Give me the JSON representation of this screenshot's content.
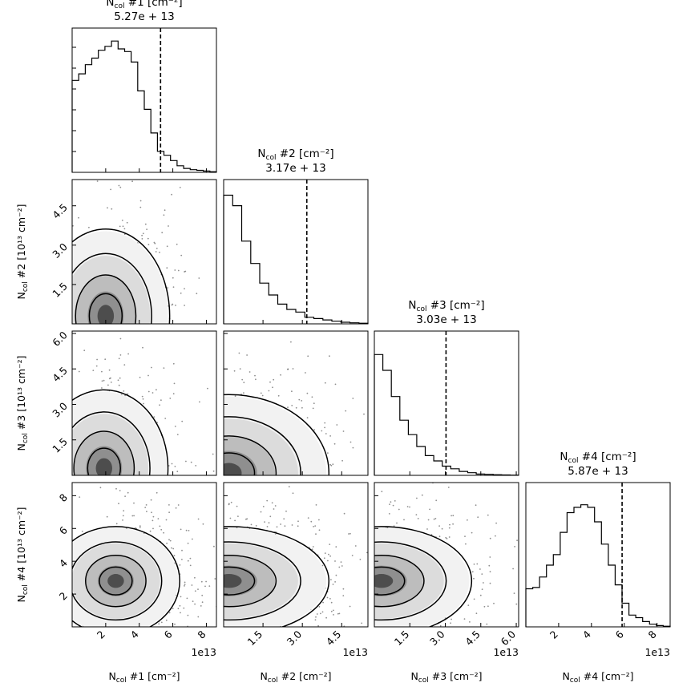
{
  "chart_data": {
    "type": "corner",
    "units_label": "[cm⁻²]",
    "scale_suffix": "1e13",
    "params": [
      {
        "name": "Ncol #1",
        "label_main": "N",
        "label_sub": "col",
        "label_rest": " #1 [cm⁻²]",
        "title_value": "5.27e + 13",
        "marker": 5.27,
        "range": [
          0,
          8.6
        ],
        "ticks": [
          2,
          4,
          6,
          8
        ],
        "tick_labels": [
          "2",
          "4",
          "6",
          "8"
        ],
        "hist_values": [
          0.7,
          0.75,
          0.82,
          0.87,
          0.93,
          0.96,
          1.0,
          0.94,
          0.92,
          0.84,
          0.62,
          0.48,
          0.3,
          0.16,
          0.13,
          0.09,
          0.05,
          0.03,
          0.02,
          0.015,
          0.01,
          0.005
        ]
      },
      {
        "name": "Ncol #2",
        "label_main": "N",
        "label_sub": "col",
        "label_rest": " #2 [cm⁻²]",
        "y_label_rest": " #2  [10¹³ cm⁻²]",
        "title_value": "3.17e + 13",
        "marker": 3.17,
        "range": [
          0,
          5.5
        ],
        "ticks": [
          1.5,
          3.0,
          4.5
        ],
        "tick_labels": [
          "1.5",
          "3.0",
          "4.5"
        ],
        "hist_values": [
          0.98,
          0.9,
          0.63,
          0.46,
          0.31,
          0.22,
          0.15,
          0.11,
          0.09,
          0.05,
          0.04,
          0.03,
          0.02,
          0.012,
          0.008,
          0.005
        ]
      },
      {
        "name": "Ncol #3",
        "label_main": "N",
        "label_sub": "col",
        "label_rest": " #3 [cm⁻²]",
        "y_label_rest": " #3  [10¹³ cm⁻²]",
        "title_value": "3.03e + 13",
        "marker": 3.03,
        "range": [
          0,
          6.1
        ],
        "ticks": [
          1.5,
          3.0,
          4.5,
          6.0
        ],
        "tick_labels": [
          "1.5",
          "3.0",
          "4.5",
          "6.0"
        ],
        "hist_values": [
          0.92,
          0.8,
          0.6,
          0.42,
          0.31,
          0.22,
          0.15,
          0.11,
          0.07,
          0.05,
          0.03,
          0.02,
          0.01,
          0.008,
          0.005,
          0.003,
          0.002
        ]
      },
      {
        "name": "Ncol #4",
        "label_main": "N",
        "label_sub": "col",
        "label_rest": " #4 [cm⁻²]",
        "y_label_rest": " #4  [10¹³ cm⁻²]",
        "title_value": "5.87e + 13",
        "marker": 5.87,
        "range": [
          0,
          8.8
        ],
        "ticks": [
          2,
          4,
          6,
          8
        ],
        "tick_labels": [
          "2",
          "4",
          "6",
          "8"
        ],
        "hist_values": [
          0.29,
          0.3,
          0.38,
          0.47,
          0.55,
          0.72,
          0.87,
          0.91,
          0.93,
          0.91,
          0.8,
          0.63,
          0.47,
          0.32,
          0.18,
          0.09,
          0.07,
          0.04,
          0.02,
          0.01,
          0.005
        ]
      }
    ],
    "contour_peaks": {
      "1-0": [
        2.0,
        0.3
      ],
      "2-0": [
        1.9,
        0.3
      ],
      "2-1": [
        0.2,
        0.1
      ],
      "3-0": [
        2.6,
        2.8
      ],
      "3-1": [
        0.2,
        2.8
      ],
      "3-2": [
        0.3,
        2.8
      ]
    }
  }
}
